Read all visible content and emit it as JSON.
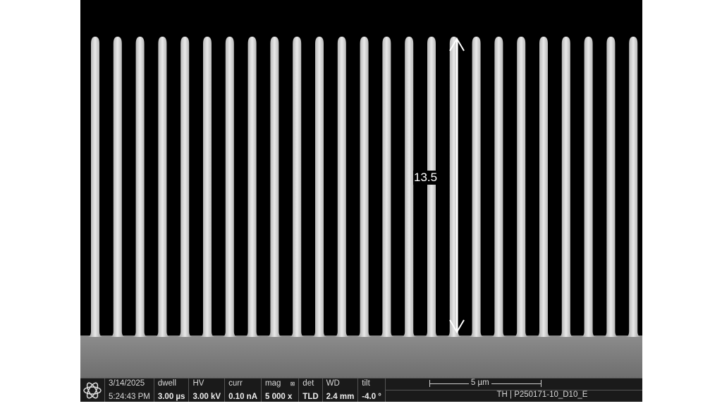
{
  "measurement": {
    "label": "13.5",
    "unit_shown": ""
  },
  "pillar_count": 25,
  "info_bar": {
    "date": "3/14/2025",
    "time": "5:24:43 PM",
    "dwell": {
      "label": "dwell",
      "value": "3.00 µs"
    },
    "hv": {
      "label": "HV",
      "value": "3.00 kV"
    },
    "curr": {
      "label": "curr",
      "value": "0.10 nA"
    },
    "mag": {
      "label": "mag",
      "marker": "⊠",
      "value": "5 000 x"
    },
    "det": {
      "label": "det",
      "value": "TLD"
    },
    "wd": {
      "label": "WD",
      "value": "2.4 mm"
    },
    "tilt": {
      "label": "tilt",
      "value": "-4.0 °"
    },
    "scale_bar": "5 µm",
    "sample_id": "TH | P250171-10_D10_E"
  }
}
